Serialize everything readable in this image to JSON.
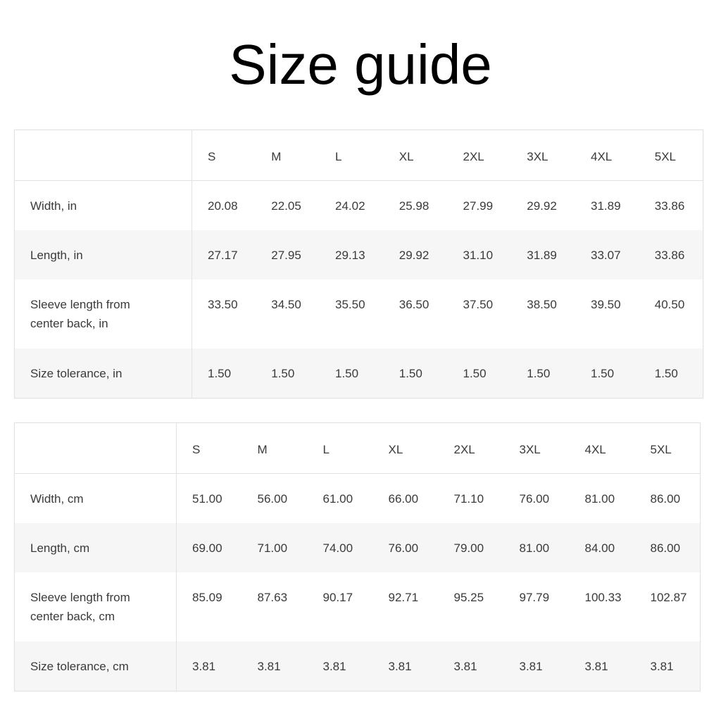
{
  "title": "Size guide",
  "tables": [
    {
      "sizes": [
        "S",
        "M",
        "L",
        "XL",
        "2XL",
        "3XL",
        "4XL",
        "5XL"
      ],
      "rows": [
        {
          "label": "Width, in",
          "values": [
            "20.08",
            "22.05",
            "24.02",
            "25.98",
            "27.99",
            "29.92",
            "31.89",
            "33.86"
          ]
        },
        {
          "label": "Length, in",
          "values": [
            "27.17",
            "27.95",
            "29.13",
            "29.92",
            "31.10",
            "31.89",
            "33.07",
            "33.86"
          ]
        },
        {
          "label": "Sleeve length from center back, in",
          "values": [
            "33.50",
            "34.50",
            "35.50",
            "36.50",
            "37.50",
            "38.50",
            "39.50",
            "40.50"
          ]
        },
        {
          "label": "Size tolerance, in",
          "values": [
            "1.50",
            "1.50",
            "1.50",
            "1.50",
            "1.50",
            "1.50",
            "1.50",
            "1.50"
          ]
        }
      ]
    },
    {
      "sizes": [
        "S",
        "M",
        "L",
        "XL",
        "2XL",
        "3XL",
        "4XL",
        "5XL"
      ],
      "rows": [
        {
          "label": "Width, cm",
          "values": [
            "51.00",
            "56.00",
            "61.00",
            "66.00",
            "71.10",
            "76.00",
            "81.00",
            "86.00"
          ]
        },
        {
          "label": "Length, cm",
          "values": [
            "69.00",
            "71.00",
            "74.00",
            "76.00",
            "79.00",
            "81.00",
            "84.00",
            "86.00"
          ]
        },
        {
          "label": "Sleeve length from center back, cm",
          "values": [
            "85.09",
            "87.63",
            "90.17",
            "92.71",
            "95.25",
            "97.79",
            "100.33",
            "102.87"
          ]
        },
        {
          "label": "Size tolerance, cm",
          "values": [
            "3.81",
            "3.81",
            "3.81",
            "3.81",
            "3.81",
            "3.81",
            "3.81",
            "3.81"
          ]
        }
      ]
    }
  ]
}
